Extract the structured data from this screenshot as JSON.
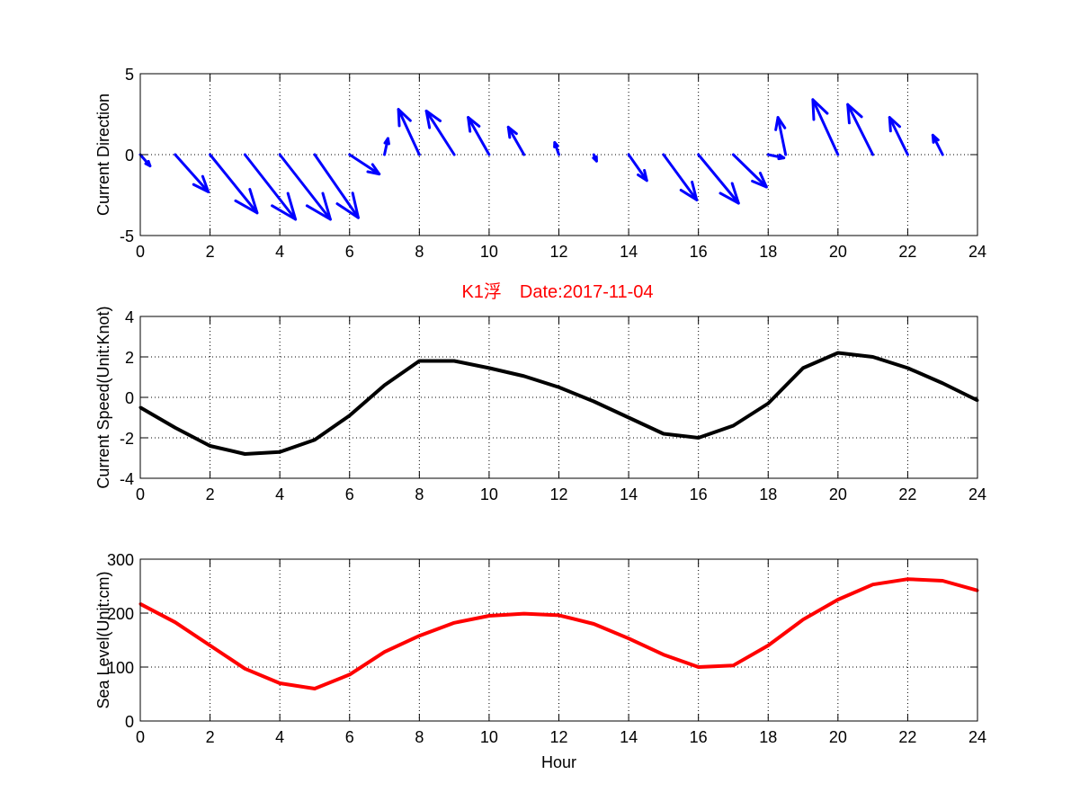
{
  "chart_data": [
    {
      "type": "quiver",
      "title": "",
      "xlabel": "",
      "ylabel": "Current Direction",
      "xlim": [
        0,
        24
      ],
      "ylim": [
        -5,
        5
      ],
      "xticks": [
        "0",
        "2",
        "4",
        "6",
        "8",
        "10",
        "12",
        "14",
        "16",
        "18",
        "20",
        "22",
        "24"
      ],
      "yticks": [
        "-5",
        "0",
        "5"
      ],
      "grid": true,
      "color": "#0000ff",
      "vectors": [
        {
          "x": 0,
          "u": 0.28,
          "v": -0.7
        },
        {
          "x": 1,
          "u": 0.95,
          "v": -2.3
        },
        {
          "x": 2,
          "u": 1.35,
          "v": -3.6
        },
        {
          "x": 3,
          "u": 1.45,
          "v": -4.0
        },
        {
          "x": 4,
          "u": 1.45,
          "v": -4.0
        },
        {
          "x": 5,
          "u": 1.25,
          "v": -3.9
        },
        {
          "x": 6,
          "u": 0.85,
          "v": -1.2
        },
        {
          "x": 7,
          "u": 0.1,
          "v": 1.0
        },
        {
          "x": 8,
          "u": -0.6,
          "v": 2.8
        },
        {
          "x": 9,
          "u": -0.8,
          "v": 2.7
        },
        {
          "x": 10,
          "u": -0.6,
          "v": 2.3
        },
        {
          "x": 11,
          "u": -0.45,
          "v": 1.7
        },
        {
          "x": 12,
          "u": -0.12,
          "v": 0.75
        },
        {
          "x": 13,
          "u": 0.08,
          "v": -0.4
        },
        {
          "x": 14,
          "u": 0.52,
          "v": -1.6
        },
        {
          "x": 15,
          "u": 0.95,
          "v": -2.8
        },
        {
          "x": 16,
          "u": 1.15,
          "v": -3.0
        },
        {
          "x": 17,
          "u": 0.95,
          "v": -2.0
        },
        {
          "x": 18,
          "u": 0.45,
          "v": -0.2
        },
        {
          "x": 18.5,
          "u": -0.22,
          "v": 2.3
        },
        {
          "x": 20,
          "u": -0.72,
          "v": 3.4
        },
        {
          "x": 21,
          "u": -0.72,
          "v": 3.1
        },
        {
          "x": 22,
          "u": -0.52,
          "v": 2.3
        },
        {
          "x": 23,
          "u": -0.28,
          "v": 1.2
        }
      ]
    },
    {
      "type": "line",
      "title": "K1浮　Date:2017-11-04",
      "title_color": "#ff0000",
      "xlabel": "",
      "ylabel": "Current Speed(Unit:Knot)",
      "xlim": [
        0,
        24
      ],
      "ylim": [
        -4,
        4
      ],
      "xticks": [
        "0",
        "2",
        "4",
        "6",
        "8",
        "10",
        "12",
        "14",
        "16",
        "18",
        "20",
        "22",
        "24"
      ],
      "yticks": [
        "-4",
        "-2",
        "0",
        "2",
        "4"
      ],
      "grid": true,
      "series": [
        {
          "color": "#000000",
          "x": [
            0,
            1,
            2,
            3,
            4,
            5,
            6,
            7,
            8,
            9,
            10,
            11,
            12,
            13,
            14,
            15,
            16,
            17,
            18,
            19,
            20,
            21,
            22,
            23,
            24
          ],
          "values": [
            -0.5,
            -1.5,
            -2.4,
            -2.8,
            -2.7,
            -2.1,
            -0.9,
            0.6,
            1.8,
            1.8,
            1.45,
            1.05,
            0.5,
            -0.2,
            -1.0,
            -1.8,
            -2.0,
            -1.4,
            -0.3,
            1.45,
            2.2,
            2.0,
            1.45,
            0.7,
            -0.15
          ]
        }
      ]
    },
    {
      "type": "line",
      "title": "",
      "xlabel": "Hour",
      "ylabel": "Sea Level(Unit:cm)",
      "xlim": [
        0,
        24
      ],
      "ylim": [
        0,
        300
      ],
      "xticks": [
        "0",
        "2",
        "4",
        "6",
        "8",
        "10",
        "12",
        "14",
        "16",
        "18",
        "20",
        "22",
        "24"
      ],
      "yticks": [
        "0",
        "100",
        "200",
        "300"
      ],
      "grid": true,
      "series": [
        {
          "color": "#ff0000",
          "x": [
            0,
            1,
            2,
            3,
            4,
            5,
            6,
            7,
            8,
            9,
            10,
            11,
            12,
            13,
            14,
            15,
            16,
            17,
            18,
            19,
            20,
            21,
            22,
            23,
            24
          ],
          "values": [
            217,
            183,
            140,
            97,
            70,
            60,
            86,
            128,
            158,
            182,
            195,
            199,
            196,
            180,
            153,
            123,
            100,
            103,
            140,
            188,
            225,
            253,
            263,
            260,
            242
          ]
        }
      ]
    }
  ]
}
